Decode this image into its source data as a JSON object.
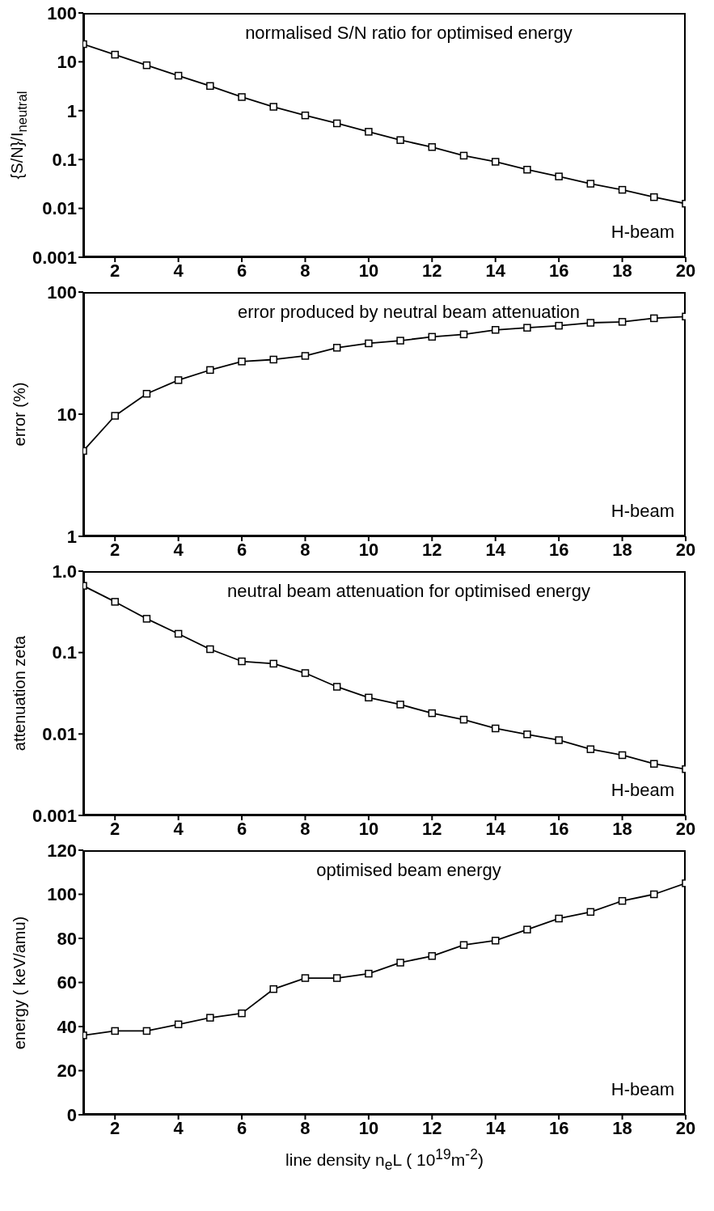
{
  "chart_data": [
    {
      "type": "line",
      "title": "normalised S/N ratio for optimised energy",
      "ylabel": "{S/N}/I$_{neutral}$",
      "annotations": [
        "H-beam"
      ],
      "x": [
        1,
        2,
        3,
        4,
        5,
        6,
        7,
        8,
        9,
        10,
        11,
        12,
        13,
        14,
        15,
        16,
        17,
        18,
        19,
        20
      ],
      "series": [
        {
          "color": "#000000",
          "values": [
            23,
            14,
            8.5,
            5.2,
            3.2,
            1.9,
            1.2,
            0.8,
            0.55,
            0.37,
            0.25,
            0.18,
            0.12,
            0.09,
            0.062,
            0.045,
            0.032,
            0.024,
            0.017,
            0.0125
          ]
        }
      ],
      "xlim": [
        1,
        20
      ],
      "xticks": [
        2,
        4,
        6,
        8,
        10,
        12,
        14,
        16,
        18,
        20
      ],
      "ylim": [
        0.001,
        100
      ],
      "yticks": [
        0.001,
        0.01,
        0.1,
        1,
        10,
        100
      ],
      "log": "y",
      "grid": false,
      "legend": false,
      "marker": "square",
      "line_style": "solid"
    },
    {
      "type": "line",
      "title": "error produced by neutral beam attenuation",
      "ylabel": "error (%)",
      "annotations": [
        "H-beam"
      ],
      "x": [
        1,
        2,
        3,
        4,
        5,
        6,
        7,
        8,
        9,
        10,
        11,
        12,
        13,
        14,
        15,
        16,
        17,
        18,
        19,
        20
      ],
      "series": [
        {
          "color": "#000000",
          "values": [
            5,
            9.7,
            14.7,
            19,
            23,
            27,
            28,
            30,
            35,
            38,
            40,
            43,
            45,
            49,
            51,
            53,
            56,
            57,
            61,
            63
          ]
        }
      ],
      "xlim": [
        1,
        20
      ],
      "xticks": [
        2,
        4,
        6,
        8,
        10,
        12,
        14,
        16,
        18,
        20
      ],
      "ylim": [
        1,
        100
      ],
      "yticks": [
        1,
        10,
        100
      ],
      "log": "y",
      "grid": false,
      "legend": false,
      "marker": "square",
      "line_style": "solid"
    },
    {
      "type": "line",
      "title": "neutral beam attenuation for optimised energy",
      "ylabel": "attenuation zeta",
      "annotations": [
        "H-beam"
      ],
      "x": [
        1,
        2,
        3,
        4,
        5,
        6,
        7,
        8,
        9,
        10,
        11,
        12,
        13,
        14,
        15,
        16,
        17,
        18,
        19,
        20
      ],
      "series": [
        {
          "color": "#000000",
          "values": [
            0.66,
            0.42,
            0.26,
            0.17,
            0.11,
            0.078,
            0.073,
            0.056,
            0.038,
            0.028,
            0.023,
            0.018,
            0.015,
            0.0117,
            0.0099,
            0.0084,
            0.0065,
            0.0055,
            0.0043,
            0.0037
          ]
        }
      ],
      "xlim": [
        1,
        20
      ],
      "xticks": [
        2,
        4,
        6,
        8,
        10,
        12,
        14,
        16,
        18,
        20
      ],
      "ylim": [
        0.001,
        1
      ],
      "yticks": [
        0.001,
        0.01,
        0.1,
        {
          "value": 1,
          "label": "1.0"
        }
      ],
      "log": "y",
      "grid": false,
      "legend": false,
      "marker": "square",
      "line_style": "solid"
    },
    {
      "type": "line",
      "title": "optimised beam energy",
      "ylabel": "energy ( keV/amu)",
      "xlabel": "line density n$_{e}$L  ( 10$^{19}$m$^{-2}$)",
      "annotations": [
        "H-beam"
      ],
      "x": [
        1,
        2,
        3,
        4,
        5,
        6,
        7,
        8,
        9,
        10,
        11,
        12,
        13,
        14,
        15,
        16,
        17,
        18,
        19,
        20
      ],
      "series": [
        {
          "color": "#000000",
          "values": [
            36,
            38,
            38,
            41,
            44,
            46,
            57,
            62,
            62,
            64,
            69,
            72,
            77,
            79,
            84,
            89,
            92,
            97,
            100,
            105
          ]
        }
      ],
      "xlim": [
        1,
        20
      ],
      "xticks": [
        2,
        4,
        6,
        8,
        10,
        12,
        14,
        16,
        18,
        20
      ],
      "ylim": [
        0,
        120
      ],
      "yticks": [
        0,
        20,
        40,
        60,
        80,
        100,
        120
      ],
      "grid": false,
      "legend": false,
      "marker": "square",
      "line_style": "solid"
    }
  ]
}
